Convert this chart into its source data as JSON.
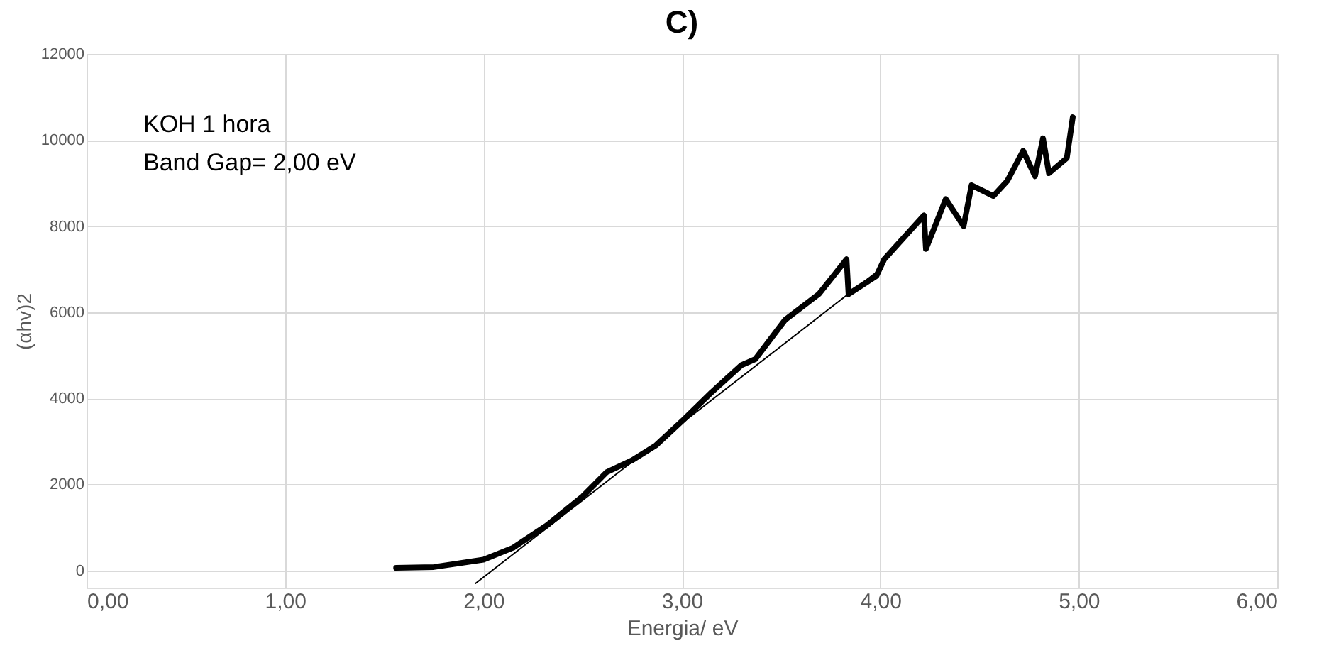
{
  "chart_data": {
    "type": "line",
    "title": "C)",
    "xlabel": "Energia/ eV",
    "ylabel": "(αhv)2",
    "annotations": [
      "KOH  1 hora",
      "Band Gap= 2,00 eV"
    ],
    "xlim": [
      0,
      6
    ],
    "ylim": [
      -400,
      12000
    ],
    "xticks": [
      {
        "value": 0,
        "label": "0,00"
      },
      {
        "value": 1,
        "label": "1,00"
      },
      {
        "value": 2,
        "label": "2,00"
      },
      {
        "value": 3,
        "label": "3,00"
      },
      {
        "value": 4,
        "label": "4,00"
      },
      {
        "value": 5,
        "label": "5,00"
      },
      {
        "value": 6,
        "label": "6,00"
      }
    ],
    "yticks": [
      0,
      2000,
      4000,
      6000,
      8000,
      10000,
      12000
    ],
    "grid": true,
    "marker": "none",
    "line_style": "solid",
    "series": [
      {
        "color": "#000000",
        "x": [
          1.56,
          1.75,
          2.0,
          2.15,
          2.32,
          2.5,
          2.62,
          2.75,
          2.87,
          3.01,
          3.15,
          3.3,
          3.37,
          3.52,
          3.69,
          3.77,
          3.83,
          3.84,
          3.98,
          4.02,
          4.22,
          4.23,
          4.33,
          4.42,
          4.46,
          4.57,
          4.64,
          4.72,
          4.78,
          4.82,
          4.85,
          4.94,
          4.97
        ],
        "values": [
          60,
          80,
          250,
          530,
          1050,
          1720,
          2280,
          2560,
          2910,
          3510,
          4140,
          4770,
          4910,
          5820,
          6420,
          6880,
          7230,
          6420,
          6840,
          7230,
          8250,
          7470,
          8630,
          8000,
          8950,
          8700,
          9050,
          9750,
          9160,
          10040,
          9230,
          9580,
          10530
        ]
      },
      {
        "type": "line",
        "color": "#000000",
        "x": [
          1.96,
          4.0
        ],
        "values": [
          -300,
          7000
        ]
      }
    ]
  }
}
